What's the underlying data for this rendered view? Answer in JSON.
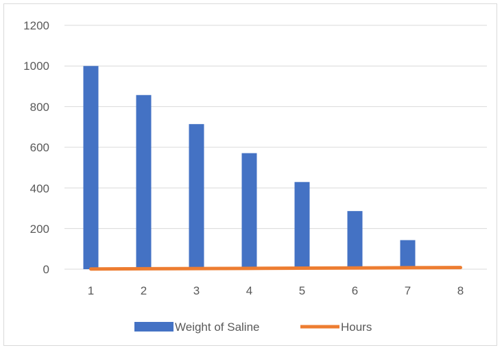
{
  "chart_data": {
    "type": "bar",
    "categories": [
      "1",
      "2",
      "3",
      "4",
      "5",
      "6",
      "7",
      "8"
    ],
    "series": [
      {
        "name": "Weight of Saline",
        "kind": "bar",
        "color": "#4472c4",
        "values": [
          1000,
          857,
          714,
          571,
          429,
          286,
          143,
          0
        ]
      },
      {
        "name": "Hours",
        "kind": "line",
        "color": "#ed7d31",
        "values": [
          1,
          2,
          3,
          4,
          5,
          6,
          7,
          8
        ]
      }
    ],
    "y_ticks": [
      "0",
      "200",
      "400",
      "600",
      "800",
      "1000",
      "1200"
    ],
    "ylim": [
      0,
      1200
    ],
    "grid": true,
    "legend_position": "bottom"
  }
}
